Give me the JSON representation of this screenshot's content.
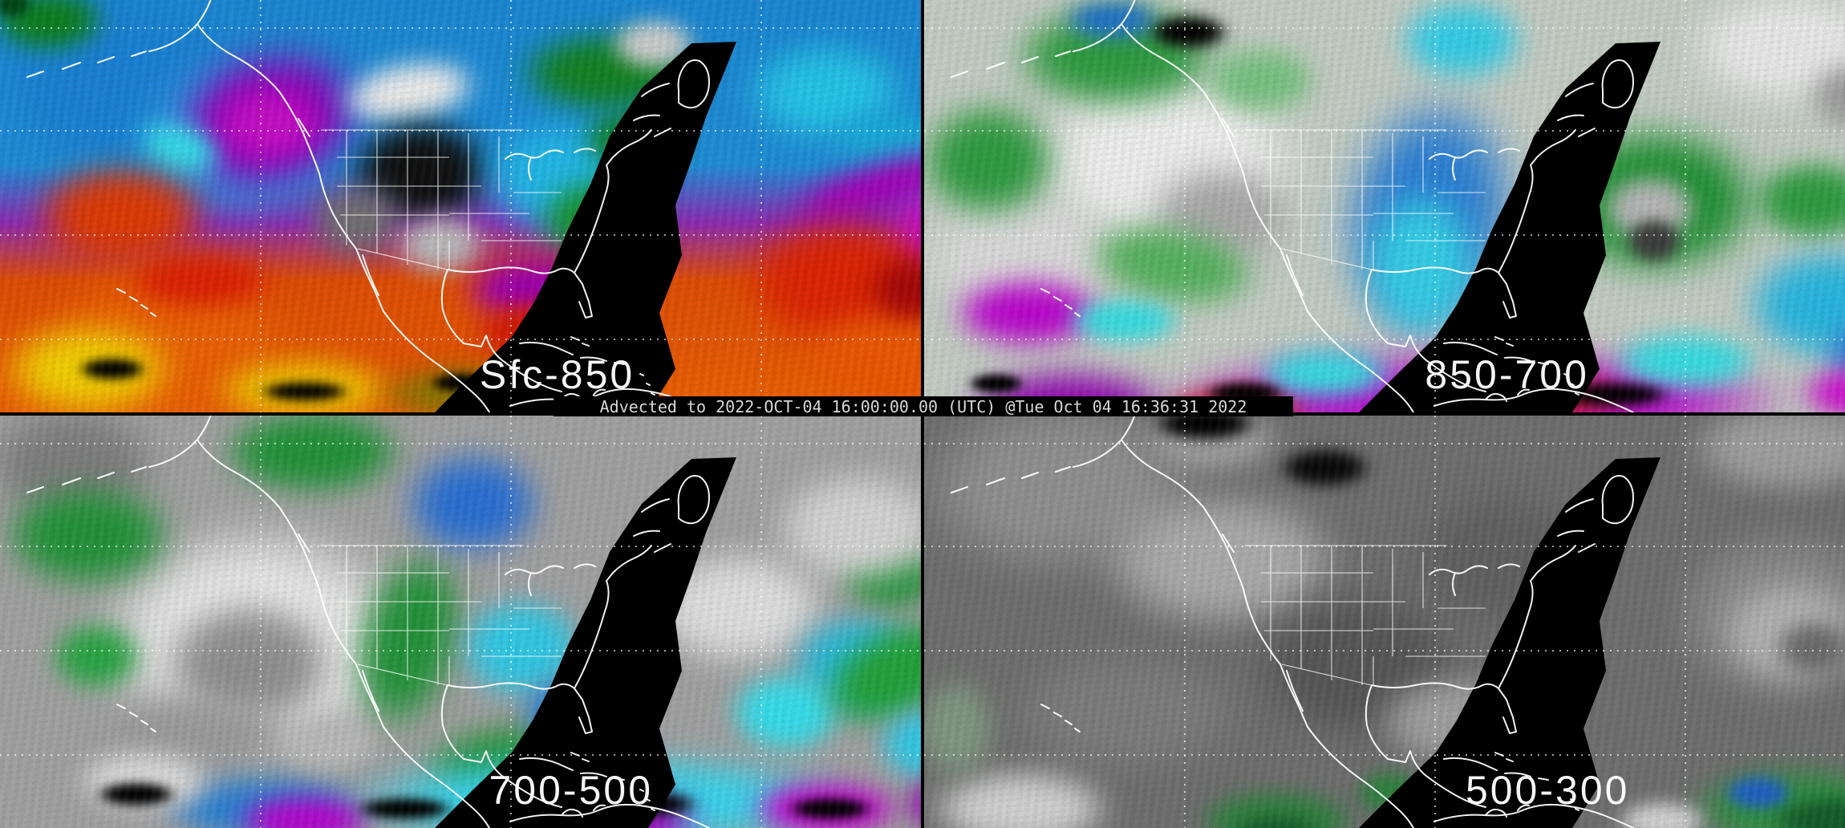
{
  "timestamp_bar": {
    "text": "Advected to 2022-OCT-04 16:00:00.00 (UTC) @Tue Oct 04 16:36:31 2022"
  },
  "panels": [
    {
      "id": "sfc-850",
      "label": "Sfc-850",
      "position": "top-left"
    },
    {
      "id": "850-700",
      "label": "850-700",
      "position": "top-right"
    },
    {
      "id": "700-500",
      "label": "700-500",
      "position": "bottom-left"
    },
    {
      "id": "500-300",
      "label": "500-300",
      "position": "bottom-right"
    }
  ],
  "colors": {
    "background": "#000000",
    "coastline": "#ffffff",
    "state_borders": "#ffffff",
    "graticule_dotted": "#ffffff",
    "label_text": "#ffffff",
    "timestamp_text": "#d9d9d9",
    "timestamp_background": "#000000",
    "no_data_wedge": "#000000",
    "moisture_scale": {
      "driest_black": "#000000",
      "dry_gray": "#808080",
      "dry_white": "#ececec",
      "moist_green": "#1f8f33",
      "cyan": "#35cbe4",
      "blue": "#2b7fd2",
      "purple": "#8e07ad",
      "magenta": "#c20ec2",
      "red": "#d92304",
      "orange": "#e86004",
      "wettest_yellow": "#f0cd04"
    }
  }
}
